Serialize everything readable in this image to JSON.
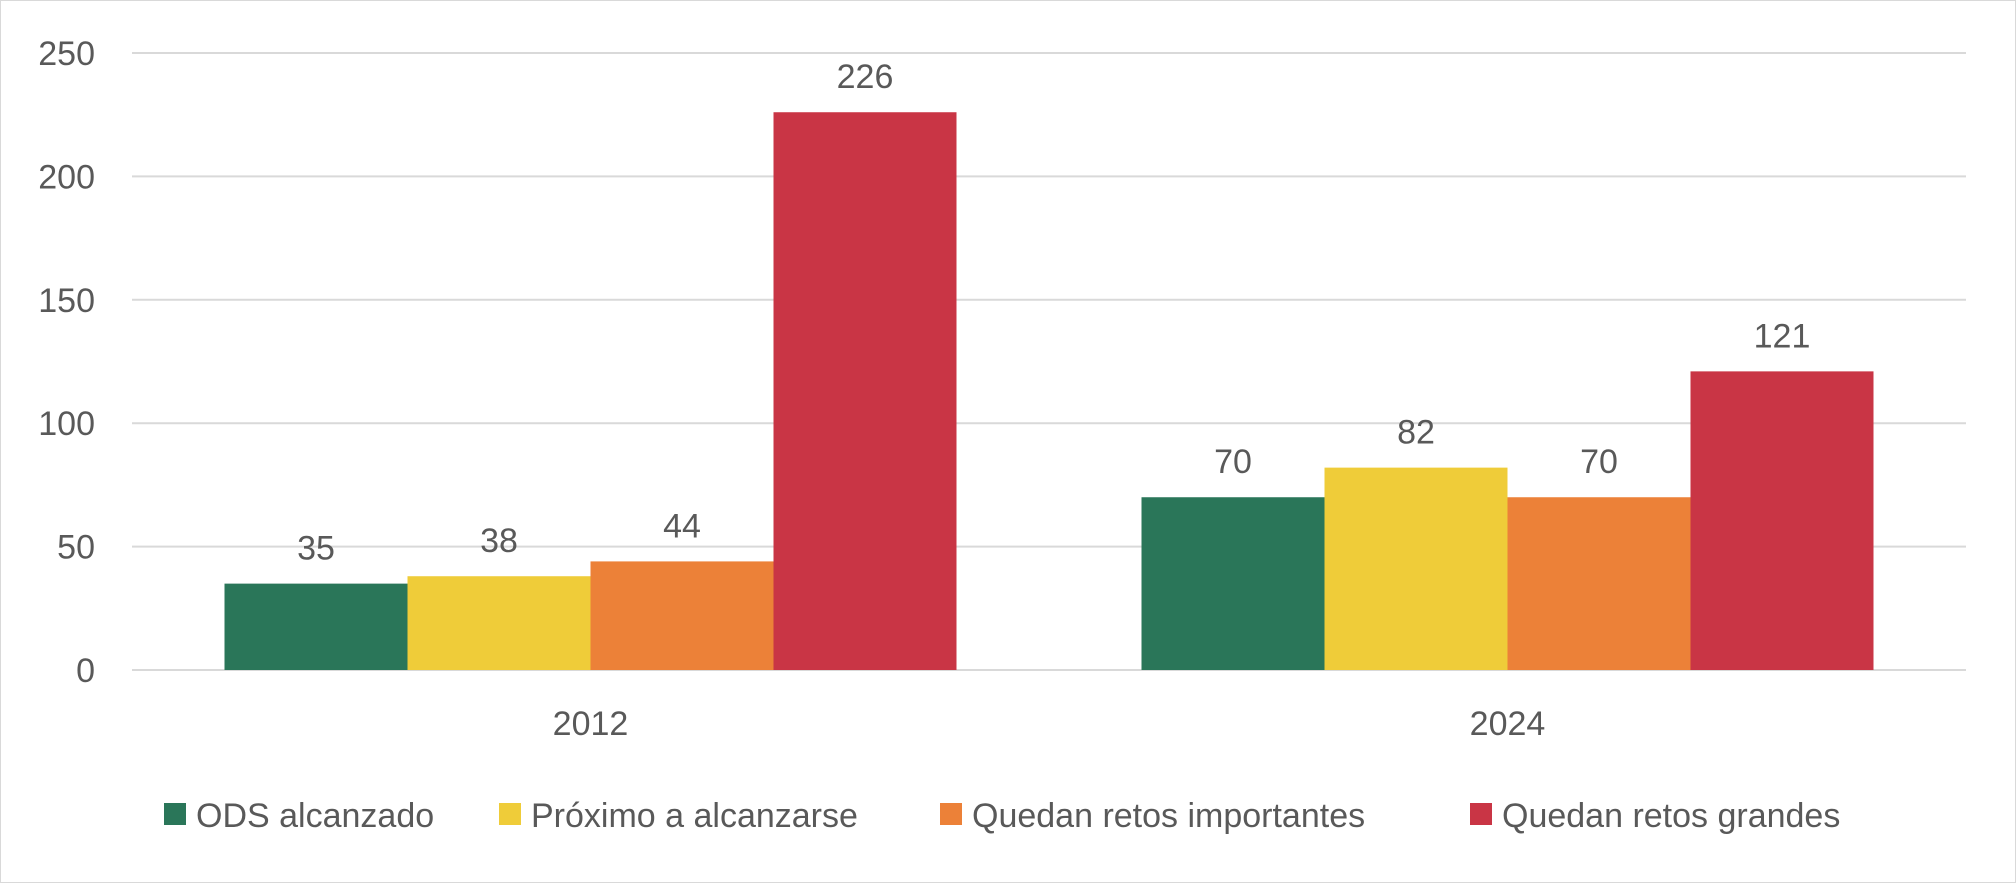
{
  "chart_data": {
    "type": "bar",
    "categories": [
      "2012",
      "2024"
    ],
    "series": [
      {
        "name": "ODS alcanzado",
        "values": [
          35,
          70
        ],
        "color": "#2a7659"
      },
      {
        "name": "Próximo a alcanzarse",
        "values": [
          38,
          82
        ],
        "color": "#efcc39"
      },
      {
        "name": "Quedan retos importantes",
        "values": [
          44,
          70
        ],
        "color": "#ec8138"
      },
      {
        "name": "Quedan retos grandes",
        "values": [
          226,
          121
        ],
        "color": "#c93545"
      }
    ],
    "title": "",
    "xlabel": "",
    "ylabel": "",
    "ylim": [
      0,
      250
    ],
    "yticks": [
      0,
      50,
      100,
      150,
      200,
      250
    ],
    "grid": true,
    "legend": "bottom",
    "gridline_color": "#d9d9d9"
  }
}
